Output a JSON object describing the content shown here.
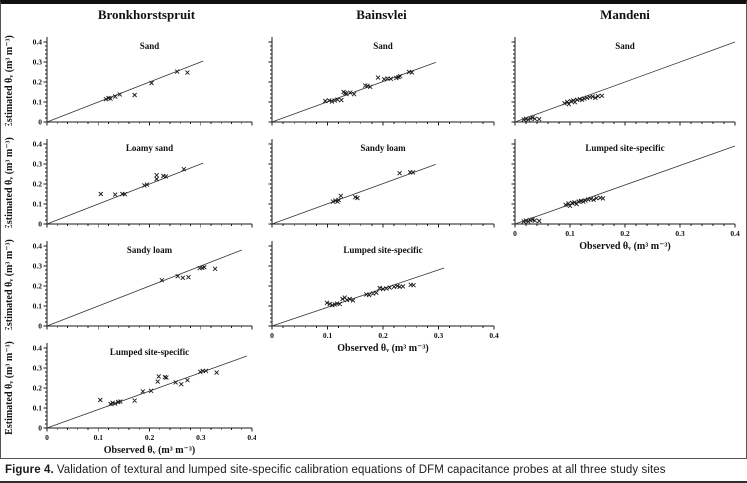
{
  "caption": {
    "label": "Figure 4.",
    "text": "Validation of textural and lumped site-specific calibration equations of DFM capacitance probes at all three study sites"
  },
  "colors": {
    "axis": "#1a1a1a",
    "marker": "#1a1a1a",
    "line": "#333333",
    "background": "#ffffff"
  },
  "chart_data": {
    "type": "scatter",
    "marker": "x",
    "identity_line": true,
    "xlabel": "Observed θᵥ (m³ m⁻³)",
    "ylabel": "Estimated θᵥ (m³ m⁻³)",
    "xlim": [
      0,
      0.4
    ],
    "ylim": [
      0,
      0.4
    ],
    "xticks": [
      "0",
      "0.1",
      "0.2",
      "0.3",
      "0.4"
    ],
    "yticks": [
      "0",
      "0.1",
      "0.2",
      "0.3",
      "0.4"
    ],
    "minor_tick_step": 0.02,
    "major_tick_step": 0.1,
    "columns": [
      {
        "site": "Bronkhorstspruit",
        "plots": [
          {
            "title": "Sand",
            "show_y_axis_labels": true,
            "show_x_axis_labels": false,
            "line_end": [
              0.305,
              0.305
            ],
            "points": [
              [
                0.115,
                0.114
              ],
              [
                0.12,
                0.12
              ],
              [
                0.124,
                0.117
              ],
              [
                0.133,
                0.127
              ],
              [
                0.142,
                0.138
              ],
              [
                0.171,
                0.135
              ],
              [
                0.204,
                0.195
              ],
              [
                0.254,
                0.252
              ],
              [
                0.274,
                0.247
              ]
            ]
          },
          {
            "title": "Loamy sand",
            "show_y_axis_labels": true,
            "show_x_axis_labels": false,
            "line_end": [
              0.305,
              0.305
            ],
            "points": [
              [
                0.105,
                0.15
              ],
              [
                0.133,
                0.147
              ],
              [
                0.147,
                0.15
              ],
              [
                0.152,
                0.149
              ],
              [
                0.19,
                0.193
              ],
              [
                0.195,
                0.197
              ],
              [
                0.214,
                0.244
              ],
              [
                0.214,
                0.225
              ],
              [
                0.227,
                0.24
              ],
              [
                0.232,
                0.238
              ],
              [
                0.267,
                0.274
              ]
            ]
          },
          {
            "title": "Sandy loam",
            "show_y_axis_labels": true,
            "show_x_axis_labels": false,
            "line_end": [
              0.38,
              0.38
            ],
            "points": [
              [
                0.224,
                0.229
              ],
              [
                0.255,
                0.249
              ],
              [
                0.265,
                0.241
              ],
              [
                0.276,
                0.244
              ],
              [
                0.298,
                0.289
              ],
              [
                0.303,
                0.291
              ],
              [
                0.307,
                0.294
              ],
              [
                0.328,
                0.286
              ]
            ]
          },
          {
            "title": "Lumped site-specific",
            "show_y_axis_labels": true,
            "show_x_axis_labels": true,
            "line_end": [
              0.39,
              0.36
            ],
            "points": [
              [
                0.104,
                0.14
              ],
              [
                0.124,
                0.12
              ],
              [
                0.128,
                0.126
              ],
              [
                0.133,
                0.122
              ],
              [
                0.139,
                0.13
              ],
              [
                0.143,
                0.132
              ],
              [
                0.171,
                0.137
              ],
              [
                0.187,
                0.183
              ],
              [
                0.203,
                0.186
              ],
              [
                0.216,
                0.232
              ],
              [
                0.218,
                0.258
              ],
              [
                0.23,
                0.254
              ],
              [
                0.233,
                0.252
              ],
              [
                0.251,
                0.228
              ],
              [
                0.262,
                0.219
              ],
              [
                0.274,
                0.239
              ],
              [
                0.299,
                0.281
              ],
              [
                0.304,
                0.285
              ],
              [
                0.31,
                0.286
              ],
              [
                0.331,
                0.277
              ]
            ]
          }
        ]
      },
      {
        "site": "Bainsvlei",
        "plots": [
          {
            "title": "Sand",
            "show_y_axis_labels": false,
            "show_x_axis_labels": false,
            "line_end": [
              0.295,
              0.298
            ],
            "points": [
              [
                0.096,
                0.105
              ],
              [
                0.103,
                0.108
              ],
              [
                0.108,
                0.102
              ],
              [
                0.113,
                0.107
              ],
              [
                0.118,
                0.112
              ],
              [
                0.125,
                0.11
              ],
              [
                0.129,
                0.15
              ],
              [
                0.132,
                0.145
              ],
              [
                0.134,
                0.14
              ],
              [
                0.141,
                0.147
              ],
              [
                0.148,
                0.139
              ],
              [
                0.168,
                0.182
              ],
              [
                0.172,
                0.18
              ],
              [
                0.177,
                0.176
              ],
              [
                0.191,
                0.222
              ],
              [
                0.202,
                0.214
              ],
              [
                0.208,
                0.218
              ],
              [
                0.214,
                0.216
              ],
              [
                0.224,
                0.22
              ],
              [
                0.228,
                0.225
              ],
              [
                0.231,
                0.229
              ],
              [
                0.247,
                0.25
              ],
              [
                0.252,
                0.248
              ]
            ]
          },
          {
            "title": "Sandy loam",
            "show_y_axis_labels": false,
            "show_x_axis_labels": false,
            "line_end": [
              0.295,
              0.298
            ],
            "points": [
              [
                0.11,
                0.112
              ],
              [
                0.114,
                0.117
              ],
              [
                0.118,
                0.112
              ],
              [
                0.12,
                0.12
              ],
              [
                0.124,
                0.141
              ],
              [
                0.15,
                0.134
              ],
              [
                0.154,
                0.13
              ],
              [
                0.23,
                0.254
              ],
              [
                0.249,
                0.259
              ],
              [
                0.254,
                0.258
              ]
            ]
          },
          {
            "title": "Lumped site-specific",
            "show_y_axis_labels": false,
            "show_x_axis_labels": true,
            "line_end": [
              0.31,
              0.29
            ],
            "points": [
              [
                0.099,
                0.116
              ],
              [
                0.104,
                0.11
              ],
              [
                0.109,
                0.104
              ],
              [
                0.113,
                0.108
              ],
              [
                0.117,
                0.112
              ],
              [
                0.122,
                0.11
              ],
              [
                0.127,
                0.135
              ],
              [
                0.131,
                0.142
              ],
              [
                0.135,
                0.13
              ],
              [
                0.14,
                0.135
              ],
              [
                0.146,
                0.128
              ],
              [
                0.17,
                0.158
              ],
              [
                0.175,
                0.155
              ],
              [
                0.182,
                0.162
              ],
              [
                0.188,
                0.166
              ],
              [
                0.194,
                0.19
              ],
              [
                0.2,
                0.185
              ],
              [
                0.206,
                0.188
              ],
              [
                0.212,
                0.192
              ],
              [
                0.22,
                0.196
              ],
              [
                0.226,
                0.2
              ],
              [
                0.23,
                0.196
              ],
              [
                0.236,
                0.198
              ],
              [
                0.25,
                0.206
              ],
              [
                0.255,
                0.204
              ]
            ]
          }
        ]
      },
      {
        "site": "Mandeni",
        "plots": [
          {
            "title": "Sand",
            "show_y_axis_labels": false,
            "show_x_axis_labels": false,
            "line_end": [
              0.4,
              0.4
            ],
            "points": [
              [
                0.016,
                0.012
              ],
              [
                0.02,
                0.016
              ],
              [
                0.024,
                0.012
              ],
              [
                0.028,
                0.018
              ],
              [
                0.032,
                0.022
              ],
              [
                0.036,
                0.016
              ],
              [
                0.044,
                0.014
              ],
              [
                0.09,
                0.094
              ],
              [
                0.095,
                0.101
              ],
              [
                0.098,
                0.089
              ],
              [
                0.102,
                0.104
              ],
              [
                0.106,
                0.107
              ],
              [
                0.109,
                0.099
              ],
              [
                0.113,
                0.111
              ],
              [
                0.118,
                0.114
              ],
              [
                0.122,
                0.111
              ],
              [
                0.126,
                0.117
              ],
              [
                0.131,
                0.121
              ],
              [
                0.136,
                0.124
              ],
              [
                0.141,
                0.127
              ],
              [
                0.146,
                0.121
              ],
              [
                0.151,
                0.129
              ],
              [
                0.158,
                0.131
              ]
            ]
          },
          {
            "title": "Lumped site-specific",
            "show_y_axis_labels": false,
            "show_x_axis_labels": true,
            "line_end": [
              0.4,
              0.39
            ],
            "points": [
              [
                0.016,
                0.013
              ],
              [
                0.02,
                0.017
              ],
              [
                0.024,
                0.013
              ],
              [
                0.028,
                0.019
              ],
              [
                0.032,
                0.022
              ],
              [
                0.036,
                0.017
              ],
              [
                0.044,
                0.015
              ],
              [
                0.092,
                0.096
              ],
              [
                0.097,
                0.103
              ],
              [
                0.1,
                0.091
              ],
              [
                0.104,
                0.105
              ],
              [
                0.108,
                0.108
              ],
              [
                0.112,
                0.1
              ],
              [
                0.116,
                0.112
              ],
              [
                0.12,
                0.115
              ],
              [
                0.124,
                0.112
              ],
              [
                0.128,
                0.118
              ],
              [
                0.133,
                0.122
              ],
              [
                0.138,
                0.125
              ],
              [
                0.143,
                0.121
              ],
              [
                0.148,
                0.129
              ],
              [
                0.155,
                0.131
              ],
              [
                0.16,
                0.128
              ]
            ]
          }
        ]
      }
    ]
  }
}
